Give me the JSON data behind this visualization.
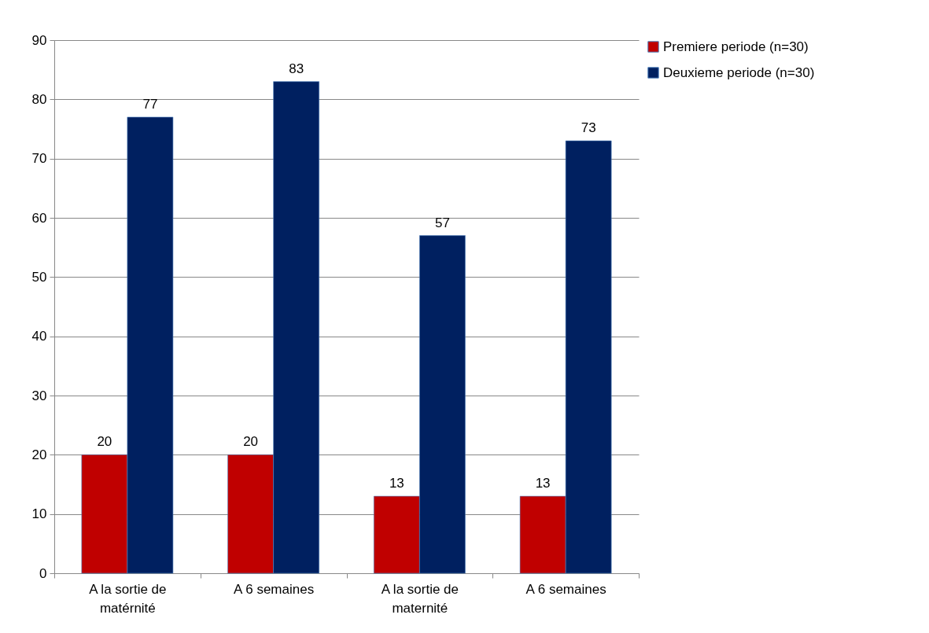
{
  "chart_data": {
    "type": "bar",
    "categories": [
      "A la sortie de matérnité",
      "A 6 semaines",
      "A la sortie de maternité",
      "A 6 semaines"
    ],
    "series": [
      {
        "name": "Premiere periode (n=30)",
        "color": "#c00000",
        "values": [
          20,
          20,
          13,
          13
        ]
      },
      {
        "name": "Deuxieme periode (n=30)",
        "color": "#002060",
        "values": [
          77,
          83,
          57,
          73
        ]
      }
    ],
    "ylim": [
      0,
      90
    ],
    "yticks": [
      0,
      10,
      20,
      30,
      40,
      50,
      60,
      70,
      80,
      90
    ],
    "grid": "y",
    "legend": "right",
    "data_labels": true
  }
}
